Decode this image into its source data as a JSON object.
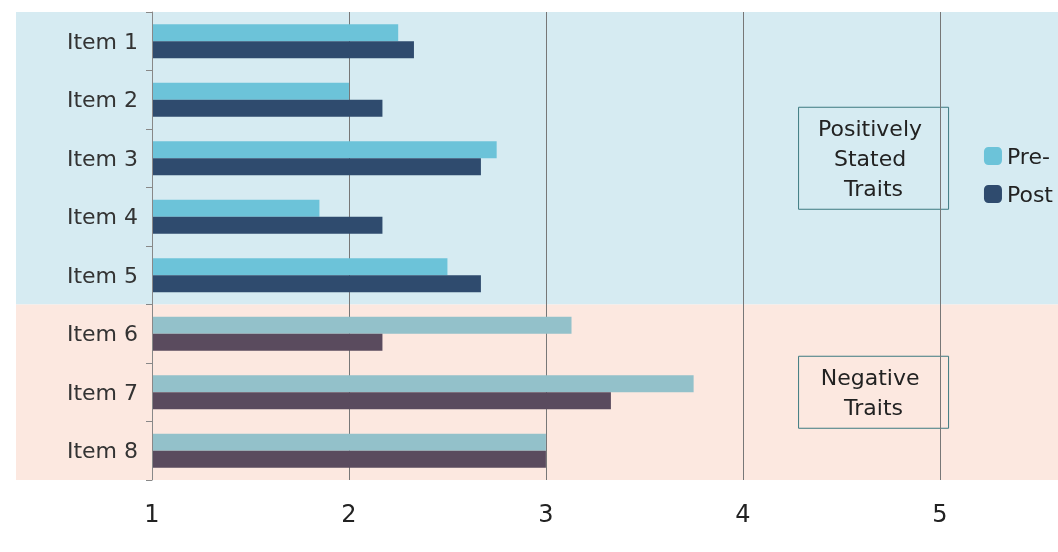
{
  "chart_data": {
    "type": "bar",
    "orientation": "horizontal",
    "categories": [
      "Item 1",
      "Item 2",
      "Item 3",
      "Item 4",
      "Item 5",
      "Item 6",
      "Item 7",
      "Item 8"
    ],
    "series": [
      {
        "name": "Pre-",
        "color": "#6cc3d9",
        "values": [
          2.25,
          2.0,
          2.75,
          1.85,
          2.5,
          3.13,
          3.75,
          3.0
        ],
        "colors": [
          "#6cc3d9",
          "#6cc3d9",
          "#6cc3d9",
          "#6cc3d9",
          "#6cc3d9",
          "#93c1ca",
          "#93c1ca",
          "#93c1ca"
        ]
      },
      {
        "name": "Post",
        "color": "#2f4b6e",
        "values": [
          2.33,
          2.17,
          2.67,
          2.17,
          2.67,
          2.17,
          3.33,
          3.0
        ],
        "colors": [
          "#2f4b6e",
          "#2f4b6e",
          "#2f4b6e",
          "#2f4b6e",
          "#2f4b6e",
          "#5a4b5e",
          "#5a4b5e",
          "#5a4b5e"
        ]
      }
    ],
    "xlim": [
      1,
      5.6
    ],
    "xticks": [
      1,
      2,
      3,
      4,
      5
    ],
    "grid": "x",
    "legend": "right",
    "bands": [
      {
        "axis": "y",
        "from": "Item 1",
        "to": "Item 5",
        "label": "Positively Stated Traits",
        "color": "#d6ebf2"
      },
      {
        "axis": "y",
        "from": "Item 6",
        "to": "Item 8",
        "label": "Negative Traits",
        "color": "#fce8e0"
      }
    ]
  }
}
